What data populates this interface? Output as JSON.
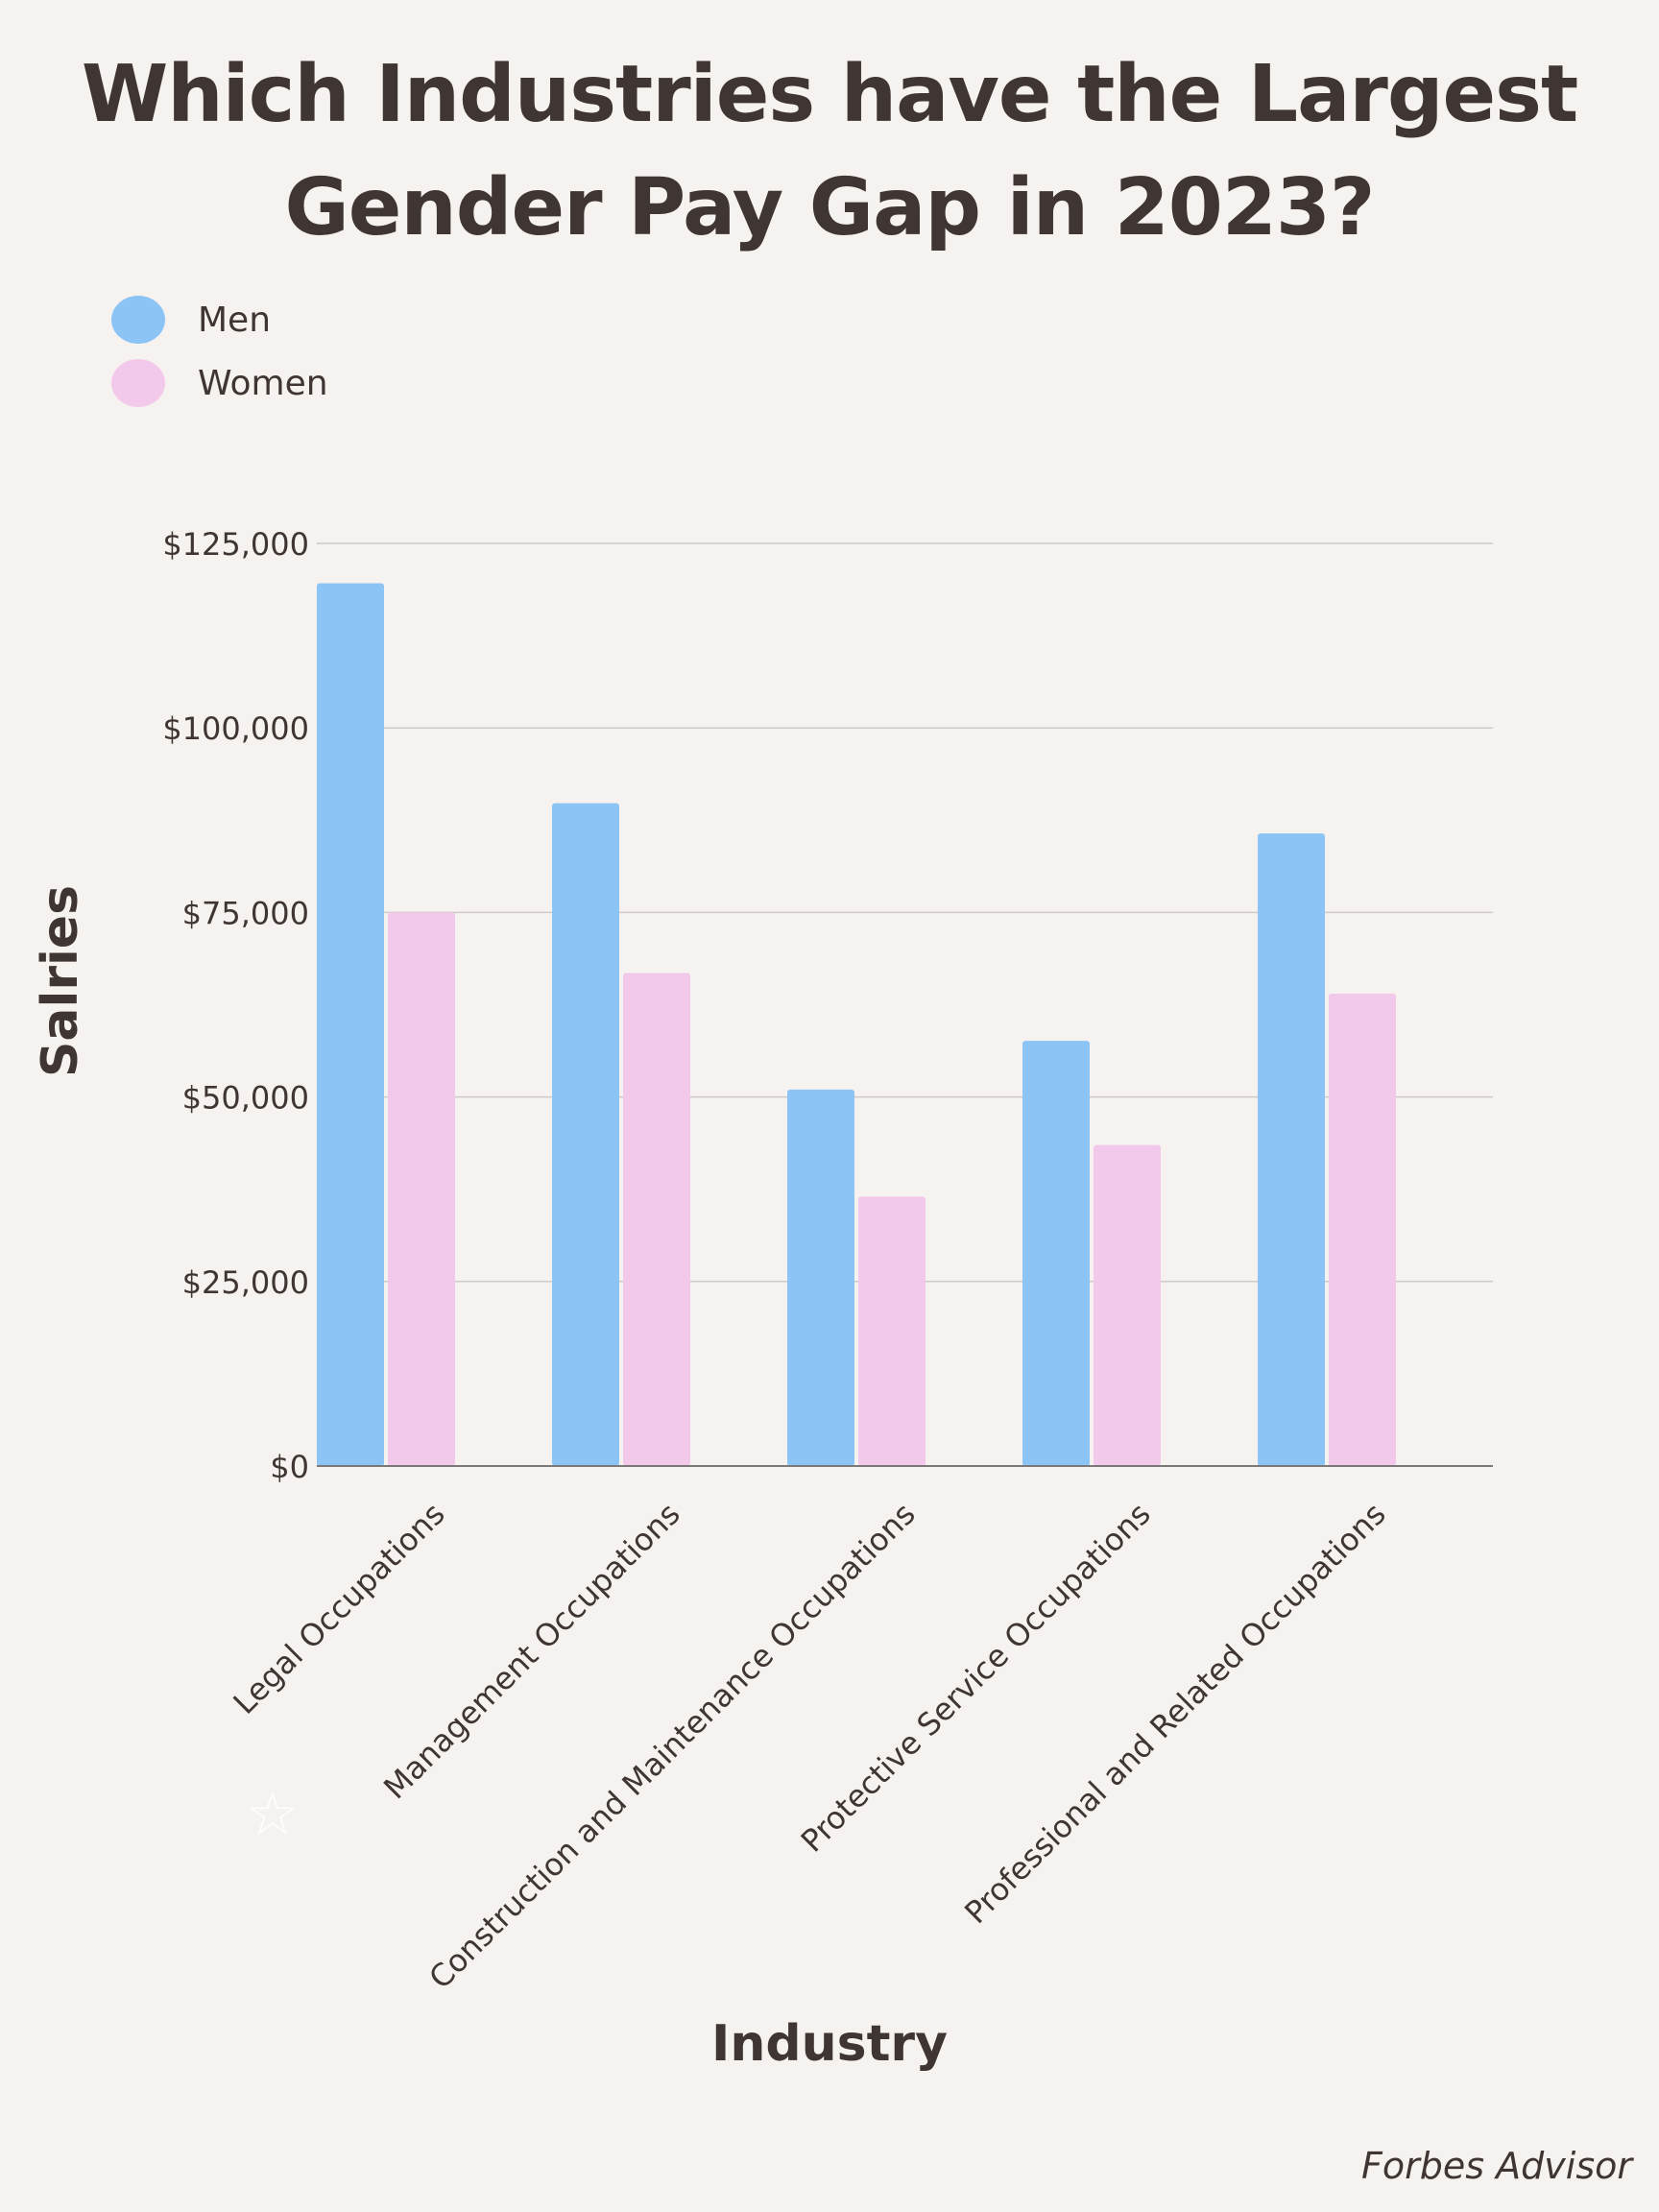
{
  "title_lines": [
    "Which Industries have the Largest",
    "Gender Pay Gap in 2023?"
  ],
  "legend": [
    {
      "label": "Men",
      "color": "#8bc4f5"
    },
    {
      "label": "Women",
      "color": "#f2c9ea"
    }
  ],
  "source": "Forbes Advisor",
  "chart_data": {
    "type": "bar",
    "title": "Which Industries have the Largest Gender Pay Gap in 2023?",
    "xlabel": "Industry",
    "ylabel": "Salries",
    "categories": [
      "Legal Occupations",
      "Management  Occupations",
      "Construction and Maintenance Occupations",
      "Protective Service Occupations",
      "Professional and Related Occupations"
    ],
    "series": [
      {
        "name": "Men",
        "color": "#8bc4f5",
        "values": [
          119600,
          89800,
          51000,
          57600,
          85700
        ]
      },
      {
        "name": "Women",
        "color": "#f2c9ea",
        "values": [
          75000,
          66800,
          36500,
          43500,
          64000
        ]
      }
    ],
    "ylim": [
      0,
      125000
    ],
    "yticks": [
      0,
      25000,
      50000,
      75000,
      100000,
      125000
    ],
    "ytick_labels": [
      "$0",
      "$25,000",
      "$50,000",
      "$75,000",
      "$100,000",
      "$125,000"
    ],
    "grid": true,
    "legend_position": "top-left"
  }
}
